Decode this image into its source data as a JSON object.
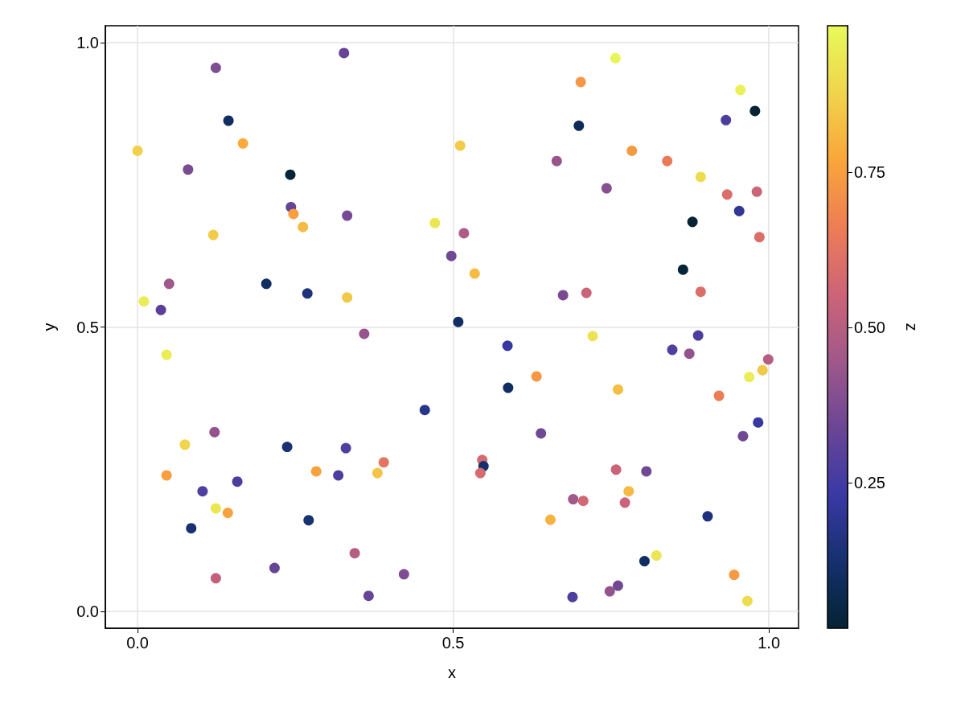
{
  "chart_data": {
    "type": "scatter",
    "xlabel": "x",
    "ylabel": "y",
    "clabel": "z",
    "marker": "circle",
    "grid": true,
    "xlim": [
      -0.051,
      1.047
    ],
    "ylim": [
      -0.03,
      1.03
    ],
    "xticks": [
      {
        "value": 0,
        "label": "0.0"
      },
      {
        "value": 0.5,
        "label": "0.5"
      },
      {
        "value": 1,
        "label": "1.0"
      }
    ],
    "yticks": [
      {
        "value": 0,
        "label": "0.0"
      },
      {
        "value": 0.5,
        "label": "0.5"
      },
      {
        "value": 1,
        "label": "1.0"
      }
    ],
    "clim": [
      0.016,
      0.986
    ],
    "cticks": [
      0.25,
      {
        "value": 0.5,
        "label": "0.50"
      },
      0.75
    ],
    "x": [
      0.0,
      0.124,
      0.327,
      0.144,
      0.167,
      0.08,
      0.242,
      0.243,
      0.247,
      0.332,
      0.262,
      0.12,
      0.471,
      0.204,
      0.269,
      0.332,
      0.01,
      0.05,
      0.037,
      0.046,
      0.359,
      0.757,
      0.702,
      0.955,
      0.978,
      0.932,
      0.699,
      0.511,
      0.783,
      0.664,
      0.839,
      0.892,
      0.743,
      0.934,
      0.981,
      0.953,
      0.879,
      0.517,
      0.985,
      0.497,
      0.534,
      0.864,
      0.674,
      0.711,
      0.892,
      0.508,
      0.721,
      0.586,
      0.888,
      0.847,
      0.874,
      0.999,
      0.99,
      0.969,
      0.632,
      0.587,
      0.761,
      0.921,
      0.455,
      0.983,
      0.959,
      0.122,
      0.075,
      0.639,
      0.237,
      0.33,
      0.546,
      0.548,
      0.543,
      0.39,
      0.283,
      0.38,
      0.318,
      0.046,
      0.758,
      0.806,
      0.158,
      0.103,
      0.778,
      0.69,
      0.706,
      0.772,
      0.124,
      0.143,
      0.903,
      0.654,
      0.271,
      0.085,
      0.344,
      0.822,
      0.803,
      0.217,
      0.124,
      0.422,
      0.945,
      0.366,
      0.761,
      0.748,
      0.689,
      0.966
    ],
    "values": [
      0.81,
      0.956,
      0.982,
      0.863,
      0.823,
      0.777,
      0.768,
      0.711,
      0.699,
      0.696,
      0.676,
      0.662,
      0.683,
      0.576,
      0.559,
      0.552,
      0.545,
      0.576,
      0.53,
      0.451,
      0.488,
      0.973,
      0.931,
      0.917,
      0.88,
      0.864,
      0.854,
      0.819,
      0.81,
      0.792,
      0.792,
      0.764,
      0.744,
      0.733,
      0.738,
      0.704,
      0.685,
      0.665,
      0.658,
      0.625,
      0.594,
      0.601,
      0.556,
      0.56,
      0.562,
      0.509,
      0.484,
      0.467,
      0.485,
      0.46,
      0.453,
      0.443,
      0.424,
      0.412,
      0.413,
      0.393,
      0.39,
      0.379,
      0.354,
      0.332,
      0.308,
      0.315,
      0.293,
      0.313,
      0.289,
      0.287,
      0.266,
      0.255,
      0.243,
      0.262,
      0.246,
      0.243,
      0.239,
      0.239,
      0.249,
      0.246,
      0.228,
      0.211,
      0.211,
      0.197,
      0.194,
      0.191,
      0.181,
      0.173,
      0.167,
      0.161,
      0.16,
      0.146,
      0.102,
      0.098,
      0.088,
      0.076,
      0.058,
      0.065,
      0.064,
      0.027,
      0.045,
      0.035,
      0.025,
      0.018
    ],
    "cvalues": [
      0.87,
      0.38,
      0.33,
      0.1,
      0.78,
      0.37,
      0.03,
      0.32,
      0.75,
      0.36,
      0.82,
      0.86,
      0.93,
      0.1,
      0.15,
      0.85,
      0.95,
      0.45,
      0.3,
      0.95,
      0.43,
      0.97,
      0.73,
      0.96,
      0.02,
      0.27,
      0.08,
      0.86,
      0.74,
      0.43,
      0.65,
      0.9,
      0.4,
      0.6,
      0.55,
      0.2,
      0.02,
      0.48,
      0.6,
      0.35,
      0.82,
      0.03,
      0.37,
      0.55,
      0.6,
      0.1,
      0.92,
      0.22,
      0.27,
      0.28,
      0.42,
      0.5,
      0.85,
      0.95,
      0.73,
      0.1,
      0.83,
      0.66,
      0.18,
      0.22,
      0.35,
      0.42,
      0.88,
      0.35,
      0.13,
      0.28,
      0.58,
      0.12,
      0.58,
      0.63,
      0.76,
      0.84,
      0.27,
      0.75,
      0.55,
      0.35,
      0.27,
      0.28,
      0.82,
      0.45,
      0.57,
      0.55,
      0.93,
      0.76,
      0.15,
      0.8,
      0.13,
      0.13,
      0.5,
      0.93,
      0.1,
      0.33,
      0.53,
      0.38,
      0.74,
      0.33,
      0.35,
      0.42,
      0.28,
      0.9
    ]
  }
}
